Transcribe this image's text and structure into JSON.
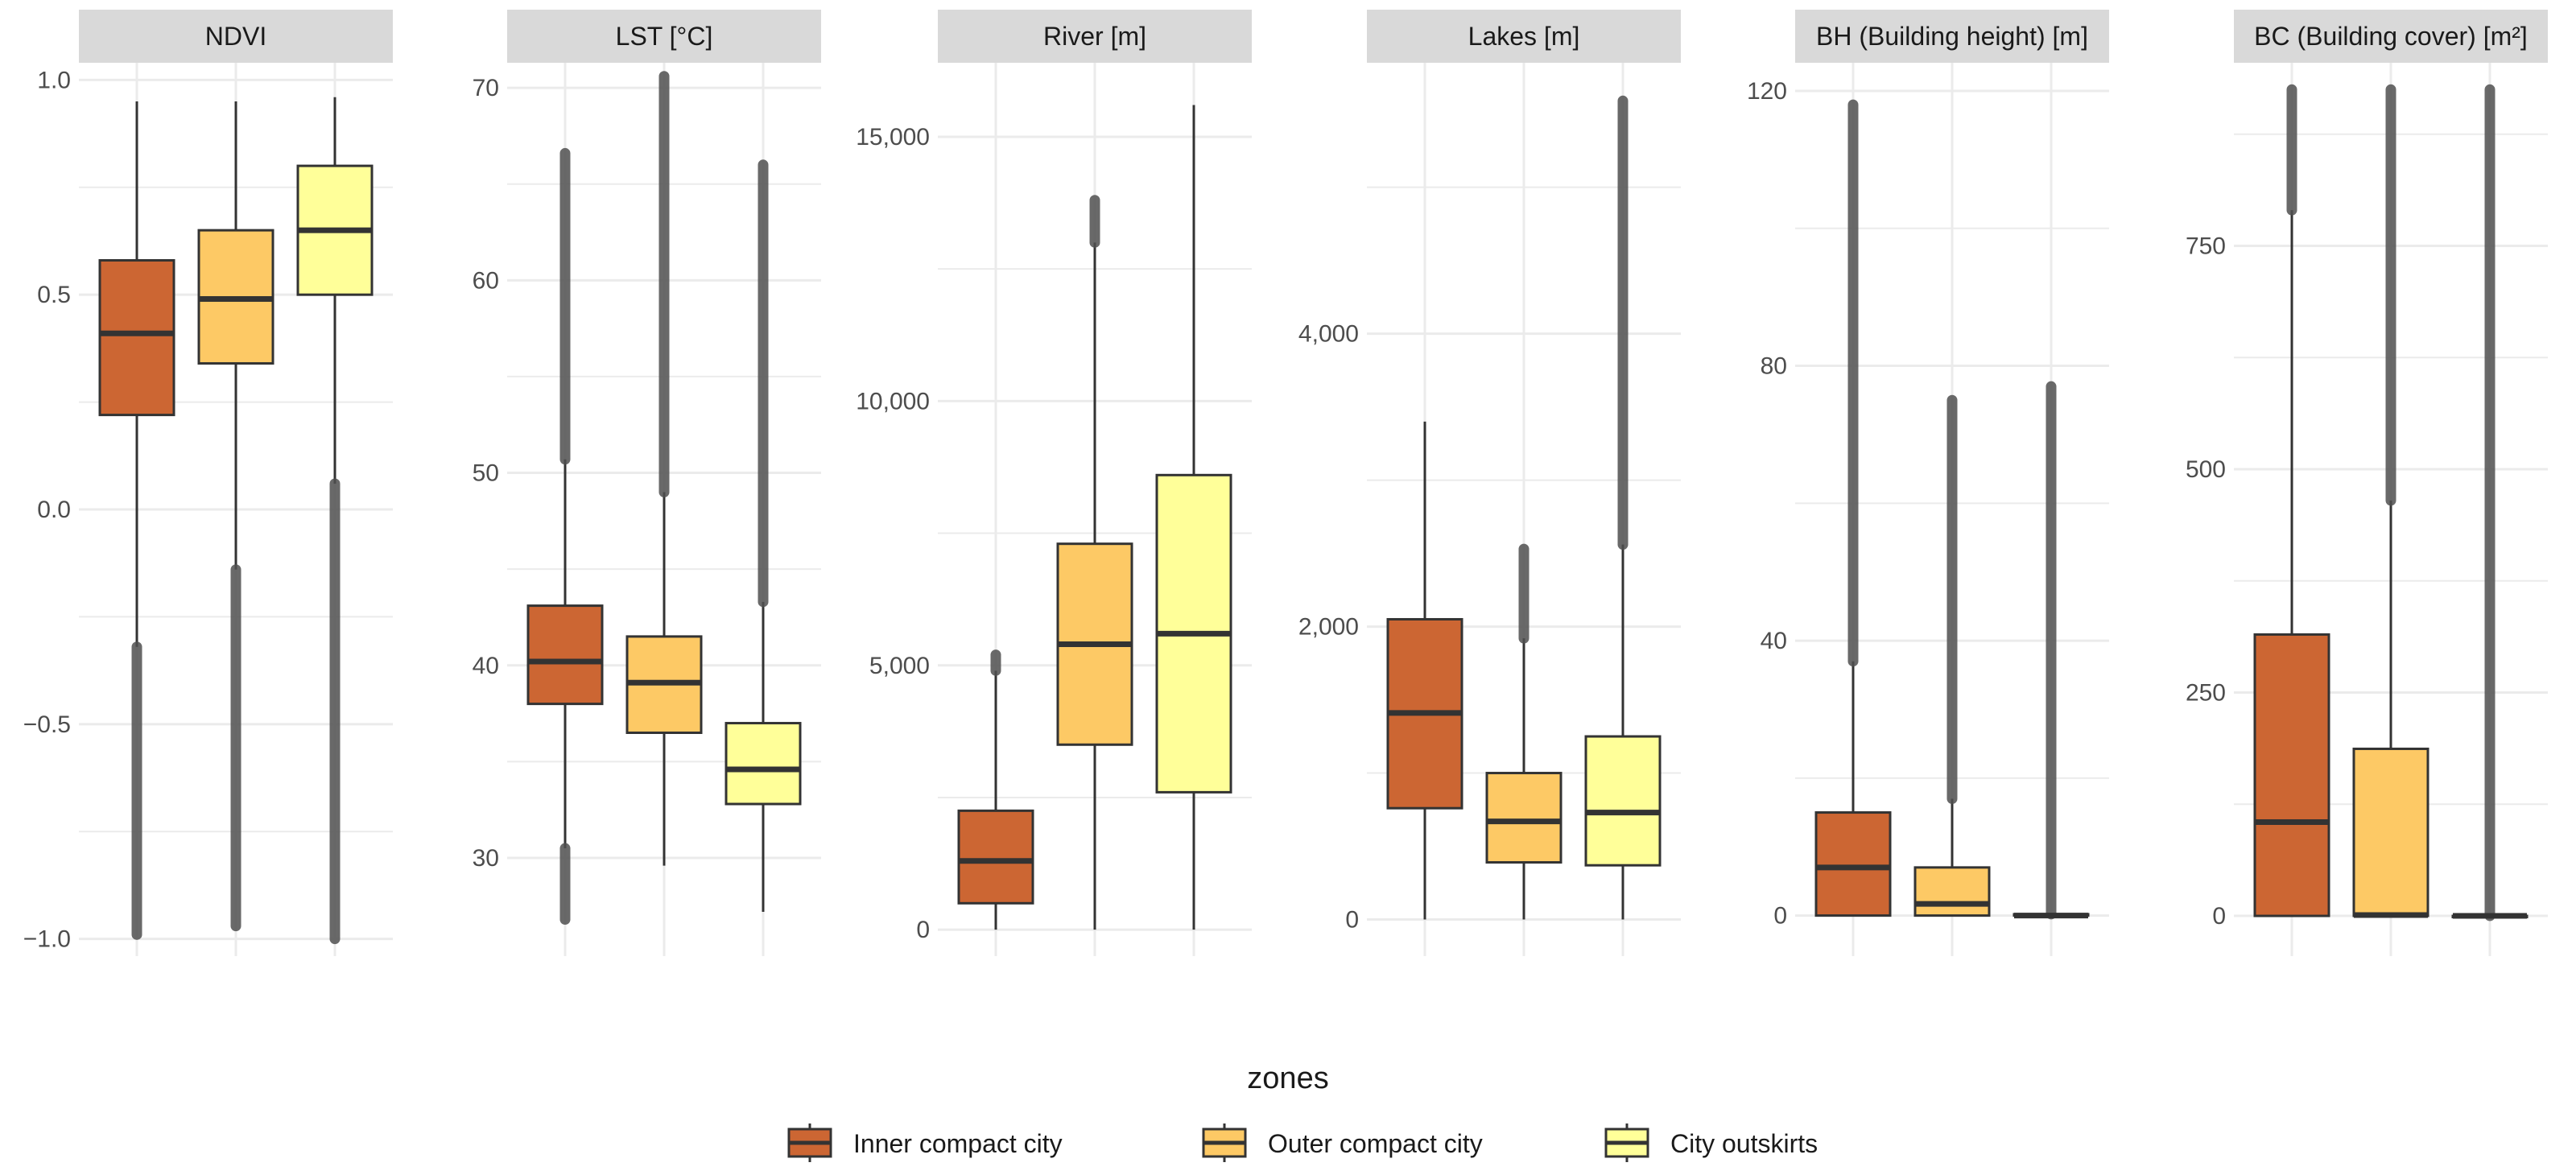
{
  "chart_data": {
    "type": "boxplot",
    "legend": {
      "title": "zones",
      "position": "bottom",
      "items": [
        {
          "label": "Inner compact city",
          "color": "#cc6633"
        },
        {
          "label": "Outer compact city",
          "color": "#fdc965"
        },
        {
          "label": "City outskirts",
          "color": "#ffff99"
        }
      ]
    },
    "colors": {
      "box_outline": "#333333",
      "outlier": "#505050",
      "strip": "#d9d9d9",
      "grid": "#ebebeb"
    },
    "panels": [
      {
        "title": "NDVI",
        "ylim": [
          -1.04,
          1.04
        ],
        "ticks": [
          -1.0,
          -0.5,
          0.0,
          0.5,
          1.0
        ],
        "tick_labels": [
          "−1.0",
          "−0.5",
          "0.0",
          "0.5",
          "1.0"
        ],
        "boxes": [
          {
            "zone": "Inner compact city",
            "min": -0.32,
            "q1": 0.22,
            "median": 0.41,
            "q3": 0.58,
            "max": 0.95,
            "outliers_low": [
              -0.99,
              -0.32
            ],
            "outliers_high": null
          },
          {
            "zone": "Outer compact city",
            "min": -0.14,
            "q1": 0.34,
            "median": 0.49,
            "q3": 0.65,
            "max": 0.95,
            "outliers_low": [
              -0.97,
              -0.14
            ],
            "outliers_high": null
          },
          {
            "zone": "City outskirts",
            "min": 0.06,
            "q1": 0.5,
            "median": 0.65,
            "q3": 0.8,
            "max": 0.96,
            "outliers_low": [
              -1.0,
              0.06
            ],
            "outliers_high": null
          }
        ]
      },
      {
        "title": "LST  [°C]",
        "ylim": [
          24.9,
          71.3
        ],
        "ticks": [
          30,
          40,
          50,
          60,
          70
        ],
        "tick_labels": [
          "30",
          "40",
          "50",
          "60",
          "70"
        ],
        "boxes": [
          {
            "zone": "Inner compact city",
            "min": 30.5,
            "q1": 38.0,
            "median": 40.2,
            "q3": 43.1,
            "max": 50.7,
            "outliers_low": [
              26.8,
              30.5
            ],
            "outliers_high": [
              50.7,
              66.6
            ]
          },
          {
            "zone": "Outer compact city",
            "min": 29.6,
            "q1": 36.5,
            "median": 39.1,
            "q3": 41.5,
            "max": 49.0,
            "outliers_low": null,
            "outliers_high": [
              49.0,
              70.6
            ]
          },
          {
            "zone": "City outskirts",
            "min": 27.2,
            "q1": 32.8,
            "median": 34.6,
            "q3": 37.0,
            "max": 43.3,
            "outliers_low": null,
            "outliers_high": [
              43.3,
              66.0
            ]
          }
        ]
      },
      {
        "title": "River [m]",
        "ylim": [
          -500,
          16400
        ],
        "ticks": [
          0,
          5000,
          10000,
          15000
        ],
        "tick_labels": [
          "0",
          "5,000",
          "10,000",
          "15,000"
        ],
        "boxes": [
          {
            "zone": "Inner compact city",
            "min": 0,
            "q1": 500,
            "median": 1300,
            "q3": 2250,
            "max": 4900,
            "outliers_low": null,
            "outliers_high": [
              4900,
              5200
            ]
          },
          {
            "zone": "Outer compact city",
            "min": 0,
            "q1": 3500,
            "median": 5400,
            "q3": 7300,
            "max": 13000,
            "outliers_low": null,
            "outliers_high": [
              13000,
              13800
            ]
          },
          {
            "zone": "City outskirts",
            "min": 0,
            "q1": 2600,
            "median": 5600,
            "q3": 8600,
            "max": 15600,
            "outliers_low": null,
            "outliers_high": null
          }
        ]
      },
      {
        "title": "Lakes [m]",
        "ylim": [
          -250,
          5850
        ],
        "ticks": [
          0,
          2000,
          4000
        ],
        "tick_labels": [
          "0",
          "2,000",
          "4,000"
        ],
        "boxes": [
          {
            "zone": "Inner compact city",
            "min": 0,
            "q1": 760,
            "median": 1410,
            "q3": 2050,
            "max": 3400,
            "outliers_low": null,
            "outliers_high": null
          },
          {
            "zone": "Outer compact city",
            "min": 0,
            "q1": 390,
            "median": 670,
            "q3": 1000,
            "max": 1920,
            "outliers_low": null,
            "outliers_high": [
              1920,
              2530
            ]
          },
          {
            "zone": "City outskirts",
            "min": 0,
            "q1": 370,
            "median": 730,
            "q3": 1250,
            "max": 2560,
            "outliers_low": null,
            "outliers_high": [
              2560,
              5590
            ]
          }
        ]
      },
      {
        "title": "BH (Building height) [m]",
        "ylim": [
          -5.9,
          124.1
        ],
        "ticks": [
          0,
          40,
          80,
          120
        ],
        "tick_labels": [
          "0",
          "40",
          "80",
          "120"
        ],
        "boxes": [
          {
            "zone": "Inner compact city",
            "min": 0,
            "q1": 0,
            "median": 7,
            "q3": 15,
            "max": 37,
            "outliers_low": null,
            "outliers_high": [
              37,
              118
            ]
          },
          {
            "zone": "Outer compact city",
            "min": 0,
            "q1": 0,
            "median": 1.7,
            "q3": 7,
            "max": 17,
            "outliers_low": null,
            "outliers_high": [
              17,
              75
            ]
          },
          {
            "zone": "City outskirts",
            "min": 0,
            "q1": 0,
            "median": 0,
            "q3": 0.2,
            "max": 0.2,
            "outliers_low": null,
            "outliers_high": [
              0.2,
              77
            ]
          }
        ]
      },
      {
        "title": "BC (Building cover) [m²]",
        "ylim": [
          -45,
          955
        ],
        "ticks": [
          0,
          250,
          500,
          750
        ],
        "tick_labels": [
          "0",
          "250",
          "500",
          "750"
        ],
        "boxes": [
          {
            "zone": "Inner compact city",
            "min": 0,
            "q1": 0,
            "median": 105,
            "q3": 315,
            "max": 790,
            "outliers_low": null,
            "outliers_high": [
              790,
              925
            ]
          },
          {
            "zone": "Outer compact city",
            "min": 0,
            "q1": 0,
            "median": 1,
            "q3": 187,
            "max": 465,
            "outliers_low": null,
            "outliers_high": [
              465,
              925
            ]
          },
          {
            "zone": "City outskirts",
            "min": 0,
            "q1": 0,
            "median": 0,
            "q3": 0,
            "max": 0,
            "outliers_low": null,
            "outliers_high": [
              0,
              925
            ]
          }
        ]
      }
    ]
  }
}
